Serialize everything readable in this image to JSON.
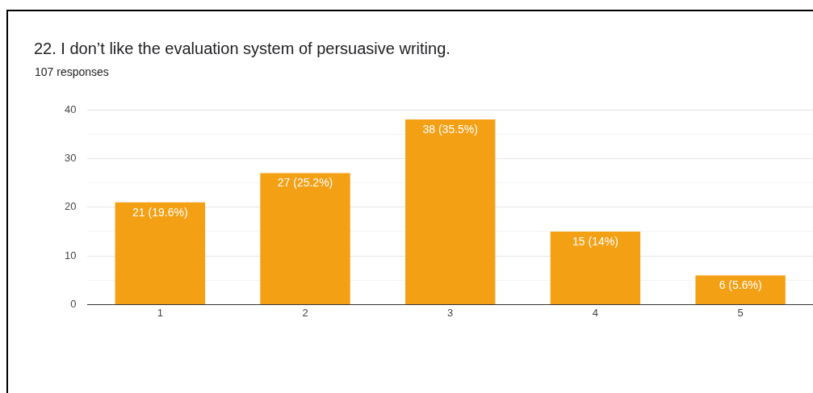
{
  "chart_data": {
    "type": "bar",
    "title": "22. I don’t like the evaluation system of persuasive writing.",
    "subtitle": "107 responses",
    "categories": [
      "1",
      "2",
      "3",
      "4",
      "5"
    ],
    "values": [
      21,
      27,
      38,
      15,
      6
    ],
    "value_labels": [
      "21 (19.6%)",
      "27 (25.2%)",
      "38 (35.5%)",
      "15 (14%)",
      "6 (5.6%)"
    ],
    "color": "#f4a015",
    "ylim": [
      0,
      40
    ],
    "yticks": [
      0,
      {
        "value": 5,
        "label": null
      },
      10,
      {
        "value": 15,
        "label": null
      },
      20,
      {
        "value": 25,
        "label": null
      },
      30,
      {
        "value": 35,
        "label": null
      },
      40
    ],
    "grid": "y"
  }
}
